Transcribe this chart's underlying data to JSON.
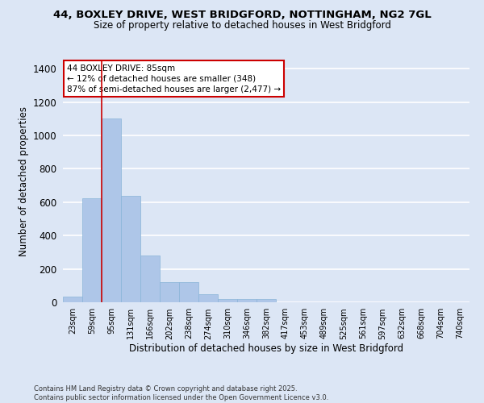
{
  "title_line1": "44, BOXLEY DRIVE, WEST BRIDGFORD, NOTTINGHAM, NG2 7GL",
  "title_line2": "Size of property relative to detached houses in West Bridgford",
  "xlabel": "Distribution of detached houses by size in West Bridgford",
  "ylabel": "Number of detached properties",
  "categories": [
    "23sqm",
    "59sqm",
    "95sqm",
    "131sqm",
    "166sqm",
    "202sqm",
    "238sqm",
    "274sqm",
    "310sqm",
    "346sqm",
    "382sqm",
    "417sqm",
    "453sqm",
    "489sqm",
    "525sqm",
    "561sqm",
    "597sqm",
    "632sqm",
    "668sqm",
    "704sqm",
    "740sqm"
  ],
  "values": [
    35,
    625,
    1100,
    640,
    280,
    120,
    120,
    50,
    20,
    20,
    20,
    0,
    0,
    0,
    0,
    0,
    0,
    0,
    0,
    0,
    0
  ],
  "bar_color": "#aec6e8",
  "bar_edge_color": "#8ab4d8",
  "vline_x": 1.5,
  "vline_color": "#cc0000",
  "annotation_text": "44 BOXLEY DRIVE: 85sqm\n← 12% of detached houses are smaller (348)\n87% of semi-detached houses are larger (2,477) →",
  "annotation_box_color": "#ffffff",
  "annotation_box_edge": "#cc0000",
  "ylim": [
    0,
    1450
  ],
  "yticks": [
    0,
    200,
    400,
    600,
    800,
    1000,
    1200,
    1400
  ],
  "bg_color": "#dce6f5",
  "plot_bg_color": "#dce6f5",
  "grid_color": "#ffffff",
  "footer": "Contains HM Land Registry data © Crown copyright and database right 2025.\nContains public sector information licensed under the Open Government Licence v3.0."
}
